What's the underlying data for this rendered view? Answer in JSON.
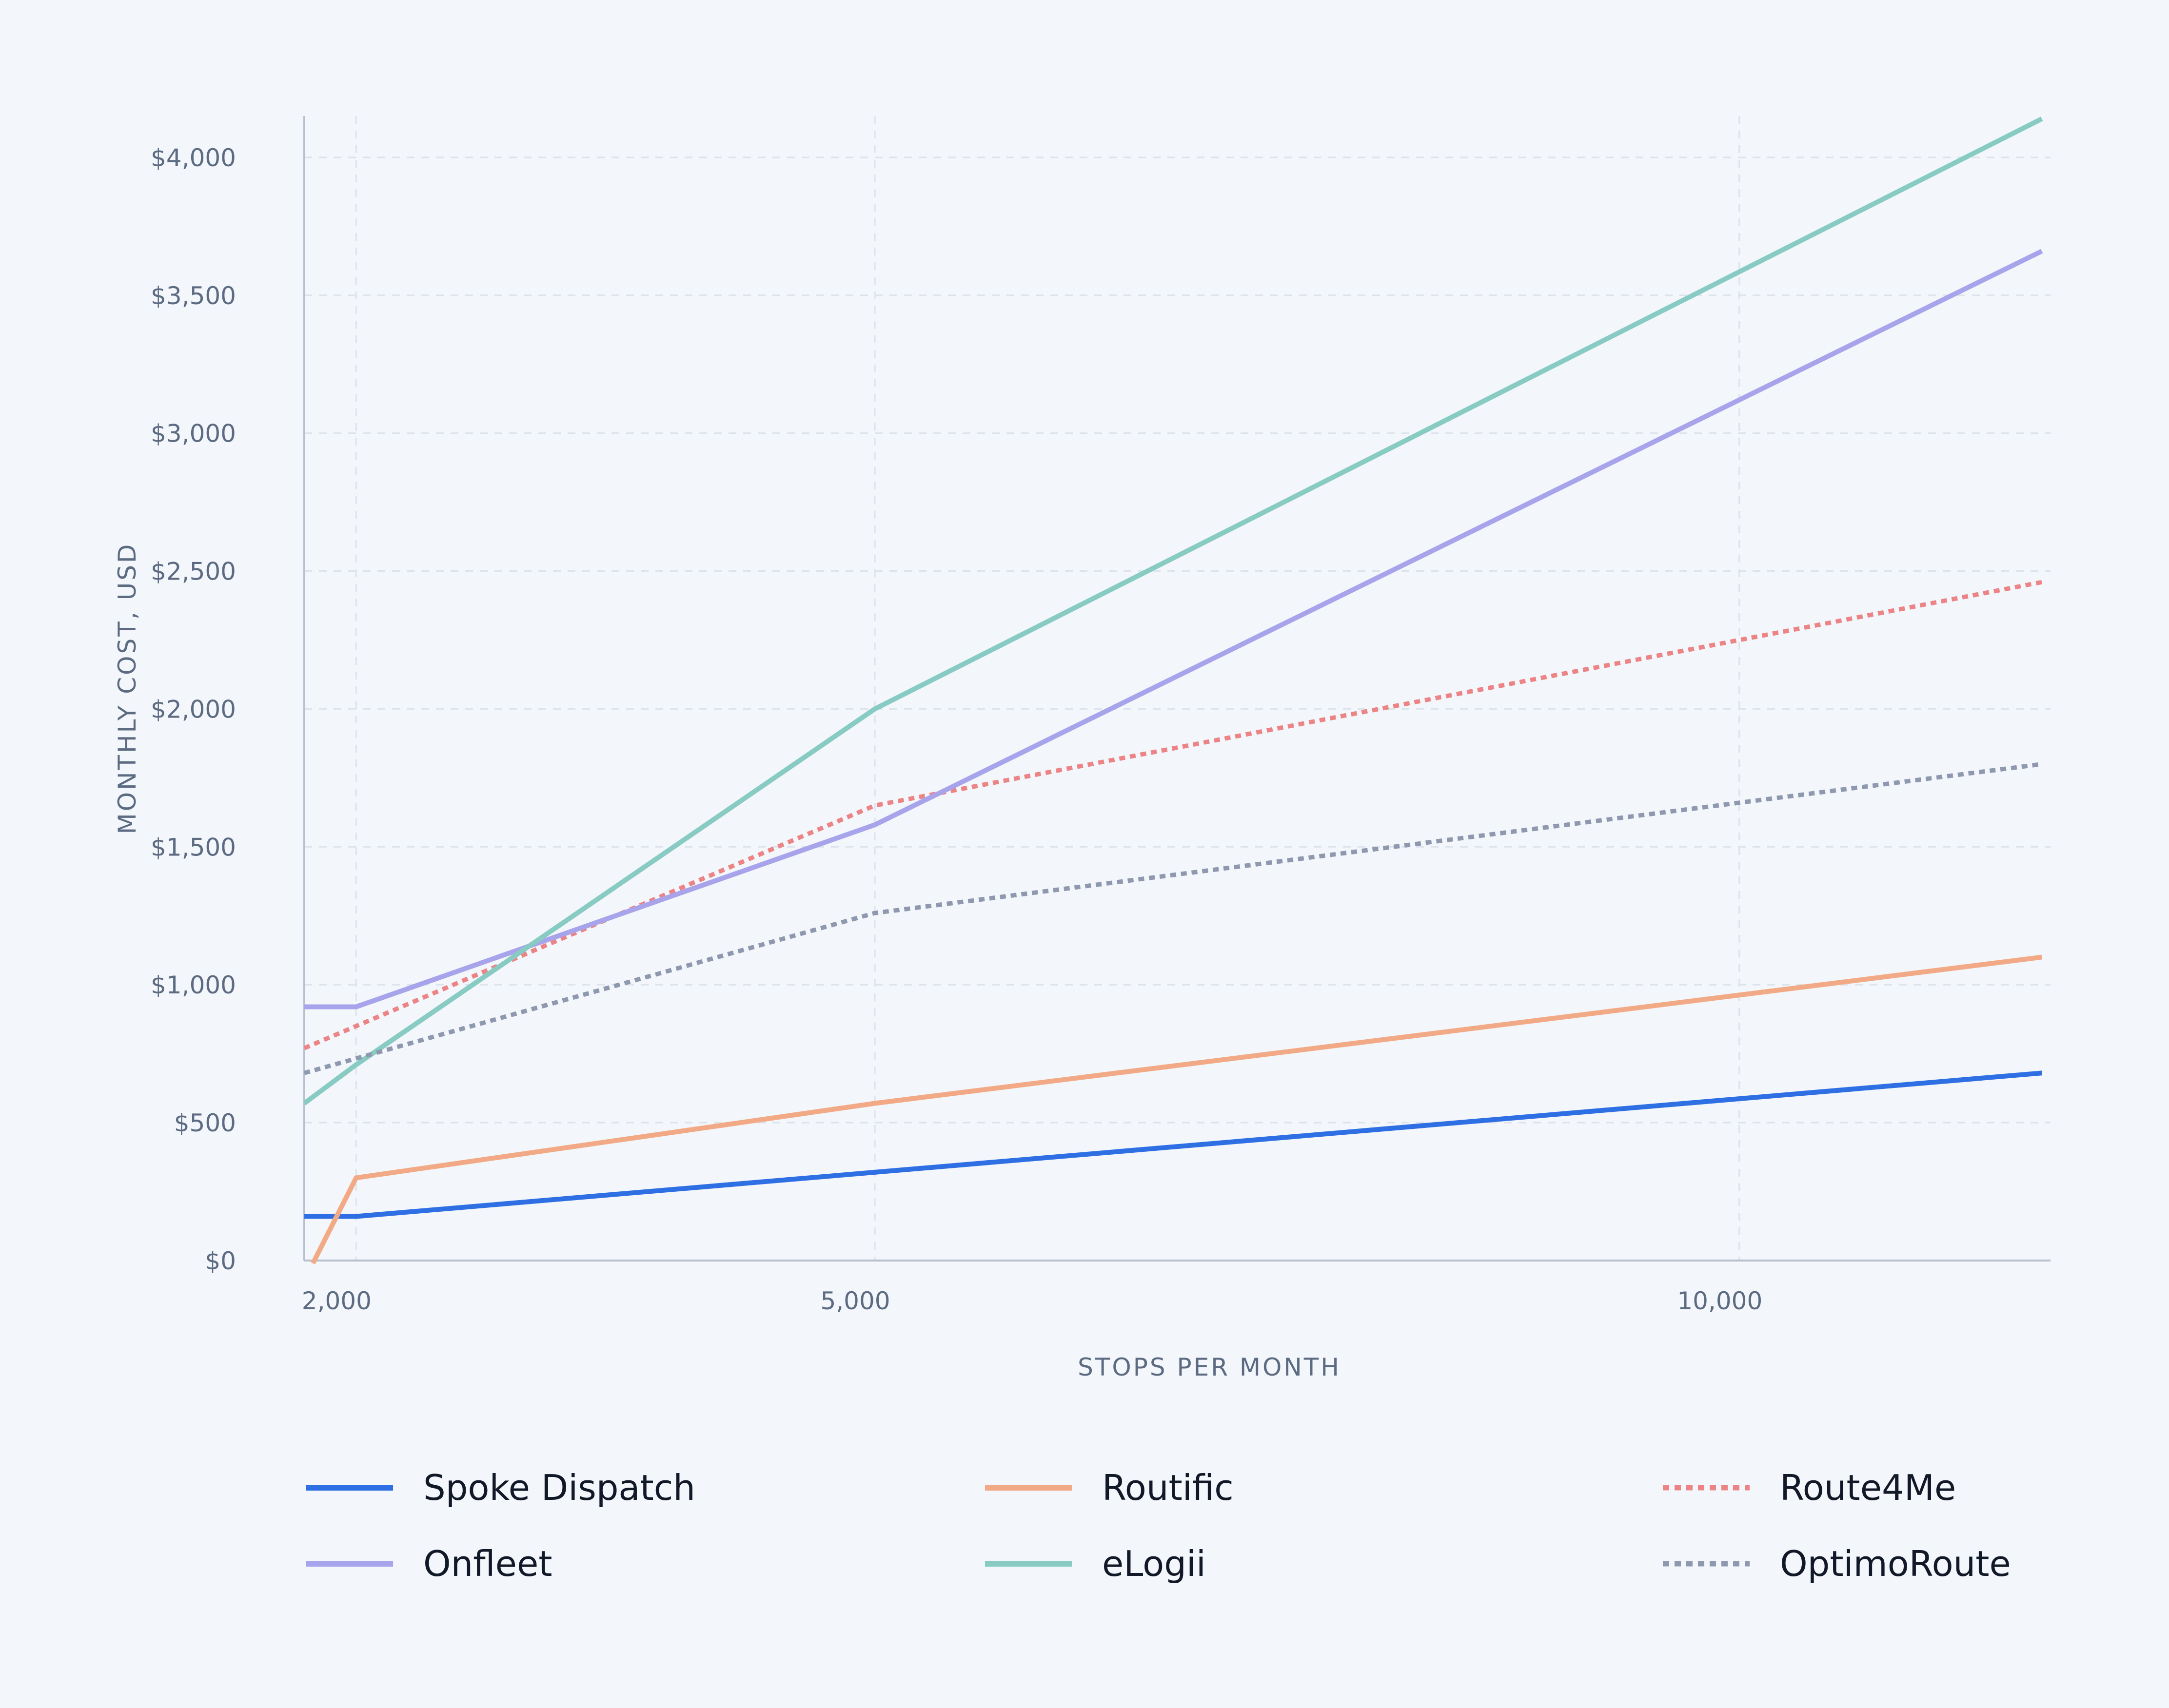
{
  "chart_data": {
    "type": "line",
    "xlabel": "STOPS PER MONTH",
    "ylabel": "MONTHLY COST, USD",
    "xlim": [
      1700,
      11800
    ],
    "ylim": [
      0,
      4150
    ],
    "x_ticks": [
      {
        "value": 2000,
        "label": "2,000"
      },
      {
        "value": 5000,
        "label": "5,000"
      },
      {
        "value": 10000,
        "label": "10,000"
      }
    ],
    "y_ticks": [
      {
        "value": 0,
        "label": "$0"
      },
      {
        "value": 500,
        "label": "$500"
      },
      {
        "value": 1000,
        "label": "$1,000"
      },
      {
        "value": 1500,
        "label": "$1,500"
      },
      {
        "value": 2000,
        "label": "$2,000"
      },
      {
        "value": 2500,
        "label": "$2,500"
      },
      {
        "value": 3000,
        "label": "$3,000"
      },
      {
        "value": 3500,
        "label": "$3,500"
      },
      {
        "value": 4000,
        "label": "$4,000"
      }
    ],
    "grid": true,
    "legend_position": "bottom",
    "series": [
      {
        "name": "Spoke Dispatch",
        "color": "#2f6fe4",
        "dash": "solid",
        "points": [
          [
            1700,
            160
          ],
          [
            2000,
            160
          ],
          [
            5000,
            320
          ],
          [
            11750,
            680
          ]
        ]
      },
      {
        "name": "Routific",
        "color": "#f2aa86",
        "dash": "solid",
        "points": [
          [
            1750,
            -10
          ],
          [
            2000,
            300
          ],
          [
            5000,
            570
          ],
          [
            11750,
            1100
          ]
        ]
      },
      {
        "name": "Route4Me",
        "color": "#ec8486",
        "dash": "dotted",
        "points": [
          [
            1700,
            770
          ],
          [
            5000,
            1650
          ],
          [
            11750,
            2460
          ]
        ]
      },
      {
        "name": "Onfleet",
        "color": "#a8a4ec",
        "dash": "solid",
        "points": [
          [
            1700,
            920
          ],
          [
            2000,
            920
          ],
          [
            5000,
            1580
          ],
          [
            11750,
            3660
          ]
        ]
      },
      {
        "name": "eLogii",
        "color": "#88cbc3",
        "dash": "solid",
        "points": [
          [
            1700,
            570
          ],
          [
            2000,
            710
          ],
          [
            5000,
            2000
          ],
          [
            11750,
            4140
          ]
        ]
      },
      {
        "name": "OptimoRoute",
        "color": "#8e98ae",
        "dash": "dotted",
        "points": [
          [
            1700,
            680
          ],
          [
            5000,
            1260
          ],
          [
            11750,
            1800
          ]
        ]
      }
    ]
  }
}
